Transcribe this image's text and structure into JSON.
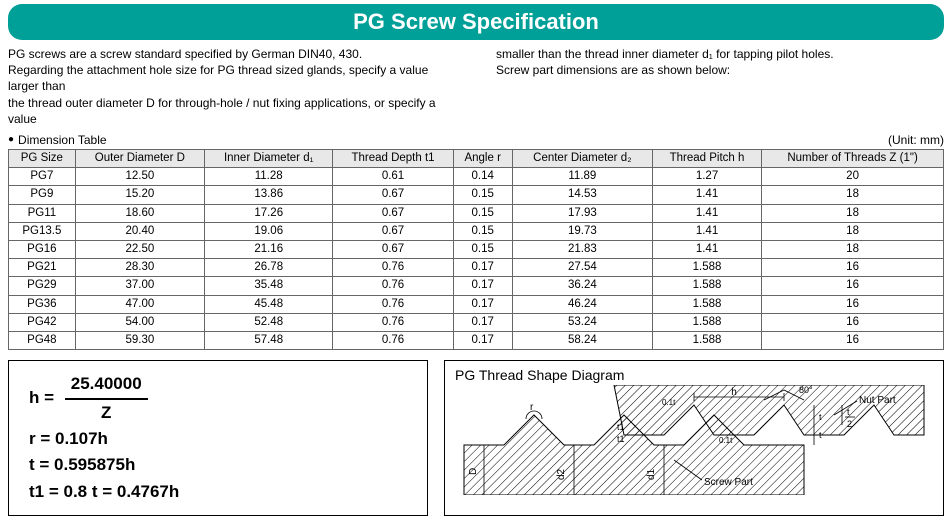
{
  "title": "PG Screw Specification",
  "intro": {
    "col1_line1": "PG screws are a screw standard specified by German DIN40, 430.",
    "col1_line2": "Regarding the attachment hole size for PG thread sized glands, specify a value larger than",
    "col1_line3": "the thread outer diameter D for through-hole / nut fixing applications, or specify a value",
    "col2_line1": "smaller than the thread inner diameter d₁ for tapping pilot holes.",
    "col2_line2": "Screw part dimensions are as shown below:"
  },
  "table_caption": "Dimension Table",
  "unit_label": "(Unit: mm)",
  "columns": [
    "PG Size",
    "Outer Diameter D",
    "Inner Diameter d₁",
    "Thread Depth t1",
    "Angle r",
    "Center Diameter d₂",
    "Thread Pitch h",
    "Number of Threads Z (1\")"
  ],
  "rows": [
    [
      "PG7",
      "12.50",
      "11.28",
      "0.61",
      "0.14",
      "11.89",
      "1.27",
      "20"
    ],
    [
      "PG9",
      "15.20",
      "13.86",
      "0.67",
      "0.15",
      "14.53",
      "1.41",
      "18"
    ],
    [
      "PG11",
      "18.60",
      "17.26",
      "0.67",
      "0.15",
      "17.93",
      "1.41",
      "18"
    ],
    [
      "PG13.5",
      "20.40",
      "19.06",
      "0.67",
      "0.15",
      "19.73",
      "1.41",
      "18"
    ],
    [
      "PG16",
      "22.50",
      "21.16",
      "0.67",
      "0.15",
      "21.83",
      "1.41",
      "18"
    ],
    [
      "PG21",
      "28.30",
      "26.78",
      "0.76",
      "0.17",
      "27.54",
      "1.588",
      "16"
    ],
    [
      "PG29",
      "37.00",
      "35.48",
      "0.76",
      "0.17",
      "36.24",
      "1.588",
      "16"
    ],
    [
      "PG36",
      "47.00",
      "45.48",
      "0.76",
      "0.17",
      "46.24",
      "1.588",
      "16"
    ],
    [
      "PG42",
      "54.00",
      "52.48",
      "0.76",
      "0.17",
      "53.24",
      "1.588",
      "16"
    ],
    [
      "PG48",
      "59.30",
      "57.48",
      "0.76",
      "0.17",
      "58.24",
      "1.588",
      "16"
    ]
  ],
  "formula": {
    "frac_num": "25.40000",
    "frac_den": "Z",
    "line1_lhs": "h = ",
    "line2": "r = 0.107h",
    "line3": "t = 0.595875h",
    "line4": "t1 = 0.8 t = 0.4767h"
  },
  "diagram": {
    "title": "PG Thread Shape Diagram",
    "labels": {
      "angle": "80°",
      "nut_part": "Nut Part",
      "screw_part": "Screw Part",
      "r": "r",
      "h": "h",
      "t_half_a": "t",
      "t_half_b": "2",
      "zero_one_t_a": "0.1t",
      "zero_one_t_b": "0.1t",
      "t1_a": "t1",
      "t1_b": "t1",
      "t_v_a": "t",
      "t_v_b": "t",
      "D": "D",
      "d1": "d1",
      "d2": "d2"
    },
    "colors": {
      "stroke": "#000000",
      "hatch": "#000000",
      "bg": "#ffffff"
    }
  },
  "styling": {
    "title_bg": "#00a099",
    "title_color": "#ffffff",
    "header_bg": "#e8e8e8",
    "border_color": "#666666",
    "text_color": "#000000",
    "title_fontsize": 22,
    "body_fontsize": 12,
    "table_fontsize": 11.5,
    "formula_fontsize": 17
  }
}
